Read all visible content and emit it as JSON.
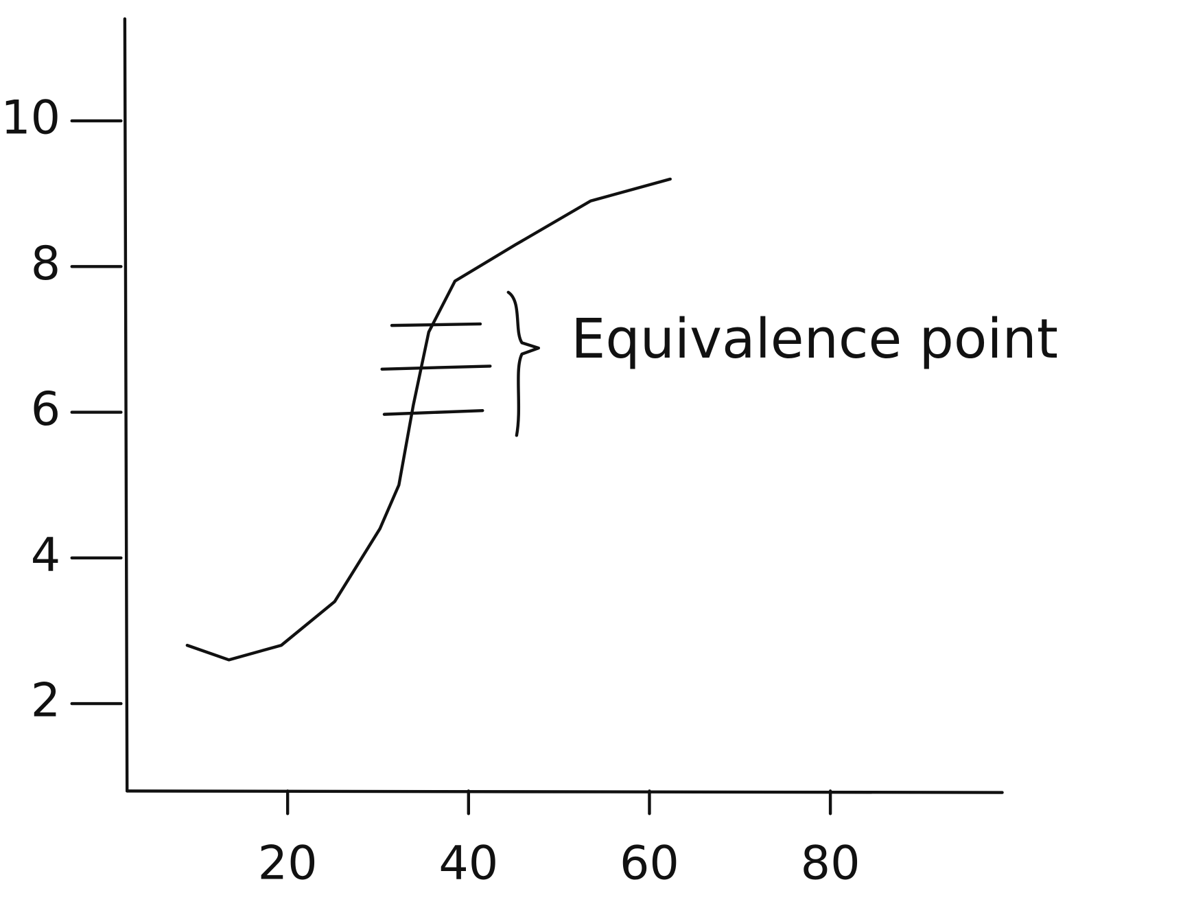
{
  "chart_data": {
    "type": "line",
    "annotation": "Equivalence point",
    "series": [
      {
        "color": "#111111",
        "x": [
          8.9,
          13.5,
          19.3,
          25.2,
          30.2,
          32.3,
          33.9,
          35.6,
          38.5,
          45.2,
          53.5,
          62.3
        ],
        "values": [
          2.8,
          2.6,
          2.8,
          3.4,
          4.4,
          5.0,
          6.1,
          7.1,
          7.8,
          8.3,
          8.9,
          9.2
        ]
      }
    ],
    "xlim": [
      2,
      99
    ],
    "ylim": [
      0.8,
      11.4
    ],
    "xticks": [
      20,
      40,
      60,
      80
    ],
    "yticks": [
      2,
      4,
      6,
      8,
      10
    ],
    "grid": false
  }
}
